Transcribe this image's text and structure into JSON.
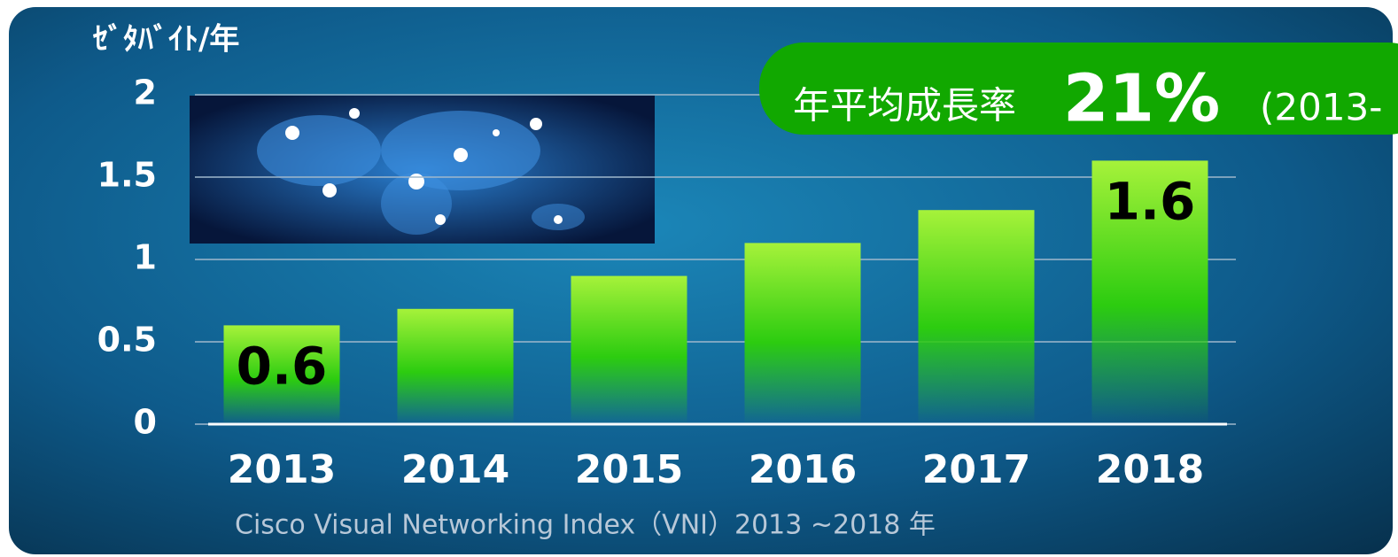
{
  "chart_data": {
    "type": "bar",
    "y_label": "ｾﾞﾀﾊﾞｲﾄ/年",
    "categories": [
      "2013",
      "2014",
      "2015",
      "2016",
      "2017",
      "2018"
    ],
    "values": [
      0.6,
      0.7,
      0.9,
      1.1,
      1.3,
      1.6
    ],
    "value_labels": [
      "0.6",
      null,
      null,
      null,
      null,
      "1.6"
    ],
    "color": "#22bb00",
    "ylim": [
      0,
      2
    ],
    "yticks": [
      0,
      0.5,
      1,
      1.5,
      2
    ],
    "grid": true,
    "annotation": {
      "label": "年平均成長率",
      "value": "21%",
      "period": "(2013-"
    },
    "source": "Cisco Visual Networking Index（VNI）2013 ~2018 年"
  }
}
